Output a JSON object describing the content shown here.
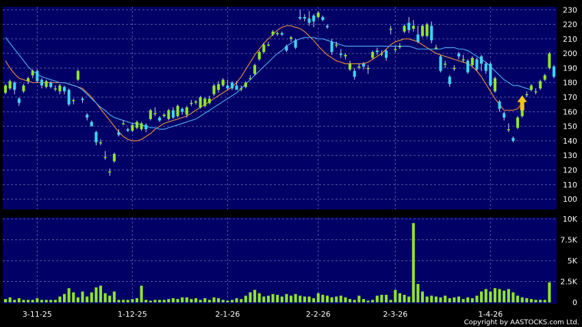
{
  "copyright": "Copyright by AASTOCKS.com Ltd.",
  "colors": {
    "panel_bg": "#000066",
    "grid": "#5a5aa8",
    "up_candle": "#8ee52a",
    "down_candle": "#3ed4f0",
    "ma_short": "#e8893a",
    "ma_long": "#4aa8f0",
    "volume": "#8ee52a",
    "arrow": "#f5c518"
  },
  "chart_data": [
    {
      "type": "candlestick",
      "title": "",
      "x_tick_labels": [
        "3-11-25",
        "1-12-25",
        "2-1-26",
        "2-2-26",
        "2-3-26",
        "1-4-26"
      ],
      "x_tick_index": [
        7,
        28,
        49,
        69,
        86,
        107
      ],
      "y_tick_labels": [
        "230",
        "220",
        "210",
        "200",
        "190",
        "180",
        "170",
        "160",
        "150",
        "140",
        "130",
        "120",
        "110",
        "100"
      ],
      "ylim": [
        93,
        232
      ],
      "grid": true,
      "marker": {
        "type": "arrow-up",
        "index": 114,
        "value": 161
      },
      "candles": [
        {
          "o": 173,
          "c": 178,
          "h": 179,
          "l": 172
        },
        {
          "o": 176,
          "c": 181,
          "h": 182,
          "l": 175
        },
        {
          "o": 180,
          "c": 175,
          "h": 181,
          "l": 172
        },
        {
          "o": 169,
          "c": 166,
          "h": 170,
          "l": 164
        },
        {
          "o": 174,
          "c": 178,
          "h": 179,
          "l": 173
        },
        {
          "o": 181,
          "c": 183,
          "h": 184,
          "l": 179
        },
        {
          "o": 185,
          "c": 188,
          "h": 189,
          "l": 183
        },
        {
          "o": 188,
          "c": 181,
          "h": 189,
          "l": 180
        },
        {
          "o": 182,
          "c": 178,
          "h": 183,
          "l": 176
        },
        {
          "o": 177,
          "c": 181,
          "h": 182,
          "l": 176
        },
        {
          "o": 180,
          "c": 177,
          "h": 181,
          "l": 176
        },
        {
          "o": 176,
          "c": 176,
          "h": 178,
          "l": 174
        },
        {
          "o": 174,
          "c": 178,
          "h": 179,
          "l": 172
        },
        {
          "o": 177,
          "c": 174,
          "h": 178,
          "l": 172
        },
        {
          "o": 175,
          "c": 165,
          "h": 176,
          "l": 164
        },
        {
          "o": 168,
          "c": 168,
          "h": 169,
          "l": 165
        },
        {
          "o": 182,
          "c": 188,
          "h": 189,
          "l": 181
        },
        {
          "o": 169,
          "c": 168,
          "h": 170,
          "l": 166
        },
        {
          "o": 158,
          "c": 156,
          "h": 159,
          "l": 154
        },
        {
          "o": 153,
          "c": 150,
          "h": 154,
          "l": 151
        },
        {
          "o": 146,
          "c": 139,
          "h": 147,
          "l": 137
        },
        {
          "o": 139,
          "c": 139,
          "h": 141,
          "l": 137
        },
        {
          "o": 129,
          "c": 129,
          "h": 133,
          "l": 127
        },
        {
          "o": 119,
          "c": 119,
          "h": 121,
          "l": 116
        },
        {
          "o": 126,
          "c": 131,
          "h": 132,
          "l": 125
        },
        {
          "o": 146,
          "c": 144,
          "h": 148,
          "l": 143
        },
        {
          "o": 152,
          "c": 152,
          "h": 154,
          "l": 151
        },
        {
          "o": 148,
          "c": 147,
          "h": 149,
          "l": 146
        },
        {
          "o": 147,
          "c": 151,
          "h": 152,
          "l": 146
        },
        {
          "o": 149,
          "c": 153,
          "h": 154,
          "l": 148
        },
        {
          "o": 148,
          "c": 152,
          "h": 153,
          "l": 147
        },
        {
          "o": 151,
          "c": 148,
          "h": 152,
          "l": 146
        },
        {
          "o": 155,
          "c": 161,
          "h": 162,
          "l": 154
        },
        {
          "o": 159,
          "c": 159,
          "h": 163,
          "l": 157
        },
        {
          "o": 156,
          "c": 154,
          "h": 157,
          "l": 153
        },
        {
          "o": 157,
          "c": 158,
          "h": 159,
          "l": 156
        },
        {
          "o": 155,
          "c": 161,
          "h": 162,
          "l": 154
        },
        {
          "o": 161,
          "c": 156,
          "h": 163,
          "l": 155
        },
        {
          "o": 157,
          "c": 164,
          "h": 165,
          "l": 156
        },
        {
          "o": 162,
          "c": 160,
          "h": 163,
          "l": 158
        },
        {
          "o": 158,
          "c": 163,
          "h": 164,
          "l": 156
        },
        {
          "o": 166,
          "c": 166,
          "h": 168,
          "l": 164
        },
        {
          "o": 167,
          "c": 167,
          "h": 168,
          "l": 165
        },
        {
          "o": 163,
          "c": 170,
          "h": 171,
          "l": 162
        },
        {
          "o": 164,
          "c": 169,
          "h": 170,
          "l": 163
        },
        {
          "o": 166,
          "c": 169,
          "h": 171,
          "l": 165
        },
        {
          "o": 172,
          "c": 178,
          "h": 179,
          "l": 171
        },
        {
          "o": 175,
          "c": 179,
          "h": 181,
          "l": 173
        },
        {
          "o": 178,
          "c": 182,
          "h": 183,
          "l": 177
        },
        {
          "o": 178,
          "c": 176,
          "h": 182,
          "l": 175
        },
        {
          "o": 180,
          "c": 176,
          "h": 181,
          "l": 175
        },
        {
          "o": 178,
          "c": 175,
          "h": 181,
          "l": 176
        },
        {
          "o": 176,
          "c": 176,
          "h": 178,
          "l": 174
        },
        {
          "o": 177,
          "c": 180,
          "h": 181,
          "l": 176
        },
        {
          "o": 183,
          "c": 183,
          "h": 185,
          "l": 182
        },
        {
          "o": 186,
          "c": 192,
          "h": 193,
          "l": 185
        },
        {
          "o": 196,
          "c": 201,
          "h": 202,
          "l": 195
        },
        {
          "o": 201,
          "c": 206,
          "h": 207,
          "l": 200
        },
        {
          "o": 206,
          "c": 206,
          "h": 208,
          "l": 205
        },
        {
          "o": 213,
          "c": 215,
          "h": 216,
          "l": 212
        },
        {
          "o": 214,
          "c": 214,
          "h": 215,
          "l": 212
        },
        {
          "o": 214,
          "c": 213,
          "h": 215,
          "l": 212
        },
        {
          "o": 205,
          "c": 202,
          "h": 206,
          "l": 201
        },
        {
          "o": 210,
          "c": 211,
          "h": 212,
          "l": 208
        },
        {
          "o": 209,
          "c": 204,
          "h": 210,
          "l": 203
        },
        {
          "o": 225,
          "c": 224,
          "h": 230,
          "l": 223
        },
        {
          "o": 225,
          "c": 224,
          "h": 227,
          "l": 222
        },
        {
          "o": 224,
          "c": 221,
          "h": 229,
          "l": 219
        },
        {
          "o": 226,
          "c": 222,
          "h": 227,
          "l": 218
        },
        {
          "o": 225,
          "c": 228,
          "h": 229,
          "l": 224
        },
        {
          "o": 225,
          "c": 223,
          "h": 226,
          "l": 222
        },
        {
          "o": 219,
          "c": 218,
          "h": 220,
          "l": 217
        },
        {
          "o": 208,
          "c": 201,
          "h": 210,
          "l": 199
        },
        {
          "o": 206,
          "c": 206,
          "h": 208,
          "l": 204
        },
        {
          "o": 200,
          "c": 199,
          "h": 203,
          "l": 197
        },
        {
          "o": 198,
          "c": 199,
          "h": 200,
          "l": 196
        },
        {
          "o": 189,
          "c": 193,
          "h": 195,
          "l": 188
        },
        {
          "o": 188,
          "c": 184,
          "h": 190,
          "l": 182
        },
        {
          "o": 191,
          "c": 191,
          "h": 193,
          "l": 189
        },
        {
          "o": 193,
          "c": 191,
          "h": 194,
          "l": 189
        },
        {
          "o": 190,
          "c": 190,
          "h": 192,
          "l": 186
        },
        {
          "o": 197,
          "c": 201,
          "h": 202,
          "l": 196
        },
        {
          "o": 202,
          "c": 201,
          "h": 204,
          "l": 199
        },
        {
          "o": 200,
          "c": 200,
          "h": 202,
          "l": 198
        },
        {
          "o": 202,
          "c": 197,
          "h": 203,
          "l": 195
        },
        {
          "o": 217,
          "c": 217,
          "h": 219,
          "l": 213
        },
        {
          "o": 203,
          "c": 203,
          "h": 205,
          "l": 201
        },
        {
          "o": 205,
          "c": 205,
          "h": 207,
          "l": 203
        },
        {
          "o": 215,
          "c": 219,
          "h": 220,
          "l": 214
        },
        {
          "o": 221,
          "c": 216,
          "h": 225,
          "l": 214
        },
        {
          "o": 217,
          "c": 219,
          "h": 223,
          "l": 215
        },
        {
          "o": 213,
          "c": 208,
          "h": 219,
          "l": 207
        },
        {
          "o": 212,
          "c": 219,
          "h": 220,
          "l": 211
        },
        {
          "o": 212,
          "c": 220,
          "h": 221,
          "l": 211
        },
        {
          "o": 219,
          "c": 209,
          "h": 222,
          "l": 207
        },
        {
          "o": 204,
          "c": 204,
          "h": 206,
          "l": 203
        },
        {
          "o": 198,
          "c": 188,
          "h": 199,
          "l": 187
        },
        {
          "o": 193,
          "c": 193,
          "h": 195,
          "l": 190
        },
        {
          "o": 184,
          "c": 179,
          "h": 185,
          "l": 177
        },
        {
          "o": 190,
          "c": 190,
          "h": 192,
          "l": 188
        },
        {
          "o": 200,
          "c": 198,
          "h": 201,
          "l": 196
        },
        {
          "o": 196,
          "c": 196,
          "h": 199,
          "l": 194
        },
        {
          "o": 195,
          "c": 187,
          "h": 196,
          "l": 186
        },
        {
          "o": 192,
          "c": 197,
          "h": 198,
          "l": 191
        },
        {
          "o": 196,
          "c": 189,
          "h": 197,
          "l": 188
        },
        {
          "o": 198,
          "c": 193,
          "h": 199,
          "l": 188
        },
        {
          "o": 193,
          "c": 188,
          "h": 194,
          "l": 186
        },
        {
          "o": 193,
          "c": 178,
          "h": 194,
          "l": 177
        },
        {
          "o": 174,
          "c": 183,
          "h": 184,
          "l": 173
        },
        {
          "o": 167,
          "c": 162,
          "h": 168,
          "l": 160
        },
        {
          "o": 159,
          "c": 156,
          "h": 160,
          "l": 154
        },
        {
          "o": 148,
          "c": 148,
          "h": 152,
          "l": 146
        },
        {
          "o": 142,
          "c": 140,
          "h": 143,
          "l": 139
        },
        {
          "o": 149,
          "c": 156,
          "h": 157,
          "l": 148
        },
        {
          "o": 157,
          "c": 162,
          "h": 163,
          "l": 156
        },
        {
          "o": 172,
          "c": 172,
          "h": 174,
          "l": 170
        },
        {
          "o": 175,
          "c": 178,
          "h": 179,
          "l": 174
        },
        {
          "o": 174,
          "c": 174,
          "h": 176,
          "l": 172
        },
        {
          "o": 176,
          "c": 181,
          "h": 182,
          "l": 175
        },
        {
          "o": 182,
          "c": 185,
          "h": 186,
          "l": 181
        },
        {
          "o": 190,
          "c": 200,
          "h": 201,
          "l": 189
        },
        {
          "o": 191,
          "c": 184,
          "h": 192,
          "l": 183
        }
      ],
      "series": [
        {
          "kind": "moving-average",
          "color": "#e8893a",
          "values": [
            195,
            190,
            186,
            183,
            182,
            181,
            180,
            180,
            180,
            180,
            180,
            180,
            180,
            180,
            179,
            178,
            177,
            176,
            173,
            170,
            166,
            162,
            158,
            154,
            150,
            146,
            143,
            141,
            140,
            140,
            141,
            143,
            145,
            148,
            150,
            152,
            153,
            154,
            155,
            156,
            157,
            159,
            161,
            163,
            165,
            167,
            169,
            171,
            173,
            175,
            177,
            180,
            184,
            189,
            194,
            199,
            203,
            207,
            210,
            213,
            216,
            218,
            219,
            219,
            218,
            217,
            215,
            212,
            209,
            205,
            202,
            199,
            197,
            195,
            194,
            193,
            193,
            193,
            193,
            193,
            194,
            196,
            198,
            200,
            203,
            206,
            208,
            209,
            210,
            210,
            209,
            208,
            206,
            204,
            202,
            200,
            199,
            198,
            197,
            196,
            195,
            194,
            193,
            191,
            188,
            184,
            179,
            174,
            169,
            165,
            161,
            161,
            161,
            162,
            166
          ]
        },
        {
          "kind": "moving-average",
          "color": "#4aa8f0",
          "values": [
            211,
            207,
            203,
            199,
            195,
            191,
            188,
            186,
            184,
            183,
            182,
            181,
            180,
            180,
            179,
            178,
            177,
            175,
            172,
            169,
            166,
            163,
            161,
            158,
            156,
            155,
            154,
            153,
            152,
            152,
            151,
            150,
            149,
            149,
            148,
            148,
            149,
            150,
            151,
            152,
            153,
            154,
            155,
            157,
            159,
            161,
            163,
            165,
            167,
            169,
            171,
            173,
            176,
            179,
            182,
            185,
            188,
            191,
            194,
            197,
            200,
            202,
            205,
            207,
            209,
            210,
            211,
            211,
            211,
            210,
            210,
            209,
            208,
            207,
            206,
            205,
            205,
            205,
            205,
            205,
            205,
            205,
            205,
            205,
            205,
            205,
            205,
            205,
            205,
            205,
            204,
            203,
            203,
            203,
            203,
            203,
            203,
            204,
            204,
            204,
            203,
            203,
            202,
            200,
            198,
            196,
            194,
            191,
            188,
            185,
            182,
            180,
            178,
            178,
            177,
            176,
            175
          ]
        }
      ]
    },
    {
      "type": "bar",
      "title": "",
      "x_tick_labels": [
        "3-11-25",
        "1-12-25",
        "2-1-26",
        "2-2-26",
        "2-3-26",
        "1-4-26"
      ],
      "y_tick_labels": [
        "10K",
        "7.5K",
        "5K",
        "2.5K",
        "0"
      ],
      "y_tick_values": [
        10000,
        7500,
        5000,
        2500,
        0
      ],
      "ylim": [
        0,
        10000
      ],
      "grid": true,
      "values": [
        400,
        600,
        300,
        500,
        300,
        300,
        300,
        500,
        300,
        300,
        300,
        300,
        700,
        1000,
        1700,
        1200,
        600,
        1300,
        700,
        1200,
        1800,
        2000,
        1100,
        800,
        1300,
        300,
        300,
        300,
        400,
        500,
        2000,
        300,
        200,
        300,
        300,
        300,
        400,
        500,
        400,
        600,
        600,
        400,
        500,
        300,
        500,
        300,
        600,
        500,
        300,
        200,
        300,
        500,
        400,
        800,
        1200,
        1500,
        1100,
        700,
        800,
        1000,
        900,
        700,
        1000,
        800,
        1000,
        800,
        700,
        700,
        500,
        1100,
        900,
        800,
        600,
        700,
        800,
        600,
        400,
        300,
        800,
        400,
        200,
        300,
        800,
        900,
        900,
        300,
        1500,
        1100,
        900,
        700,
        9500,
        2200,
        1300,
        700,
        800,
        700,
        600,
        800,
        500,
        600,
        700,
        400,
        600,
        500,
        800,
        1300,
        1600,
        1300,
        1700,
        1600,
        1400,
        1600,
        1200,
        800,
        600,
        500,
        400,
        300,
        300,
        300,
        2400
      ]
    }
  ]
}
